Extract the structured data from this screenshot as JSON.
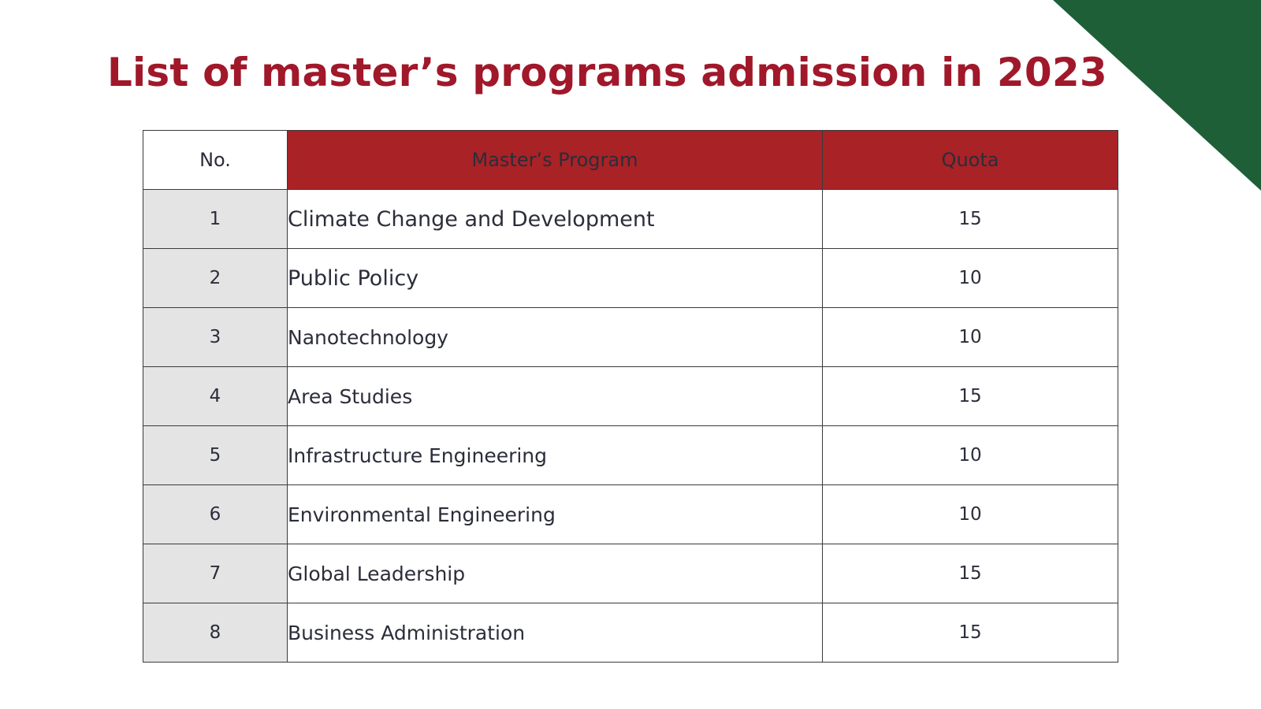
{
  "slide": {
    "title": "List of master’s programs admission in 2023",
    "colors": {
      "title": "#a0182a",
      "header_fill": "#a82226",
      "number_column_fill": "#e4e4e4",
      "corner_triangle": "#1e5f38",
      "text": "#2b2d3a"
    },
    "corner_icon": "green-triangle-decoration"
  },
  "table": {
    "headers": {
      "no": "No.",
      "program": "Master’s Program",
      "quota": "Quota"
    },
    "rows": [
      {
        "no": "1",
        "program": "Climate Change and Development",
        "quota": "15"
      },
      {
        "no": "2",
        "program": "Public Policy",
        "quota": "10"
      },
      {
        "no": "3",
        "program": "Nanotechnology",
        "quota": "10"
      },
      {
        "no": "4",
        "program": "Area Studies",
        "quota": "15"
      },
      {
        "no": "5",
        "program": "Infrastructure Engineering",
        "quota": "10"
      },
      {
        "no": "6",
        "program": "Environmental Engineering",
        "quota": "10"
      },
      {
        "no": "7",
        "program": "Global Leadership",
        "quota": "15"
      },
      {
        "no": "8",
        "program": "Business Administration",
        "quota": "15"
      }
    ]
  }
}
